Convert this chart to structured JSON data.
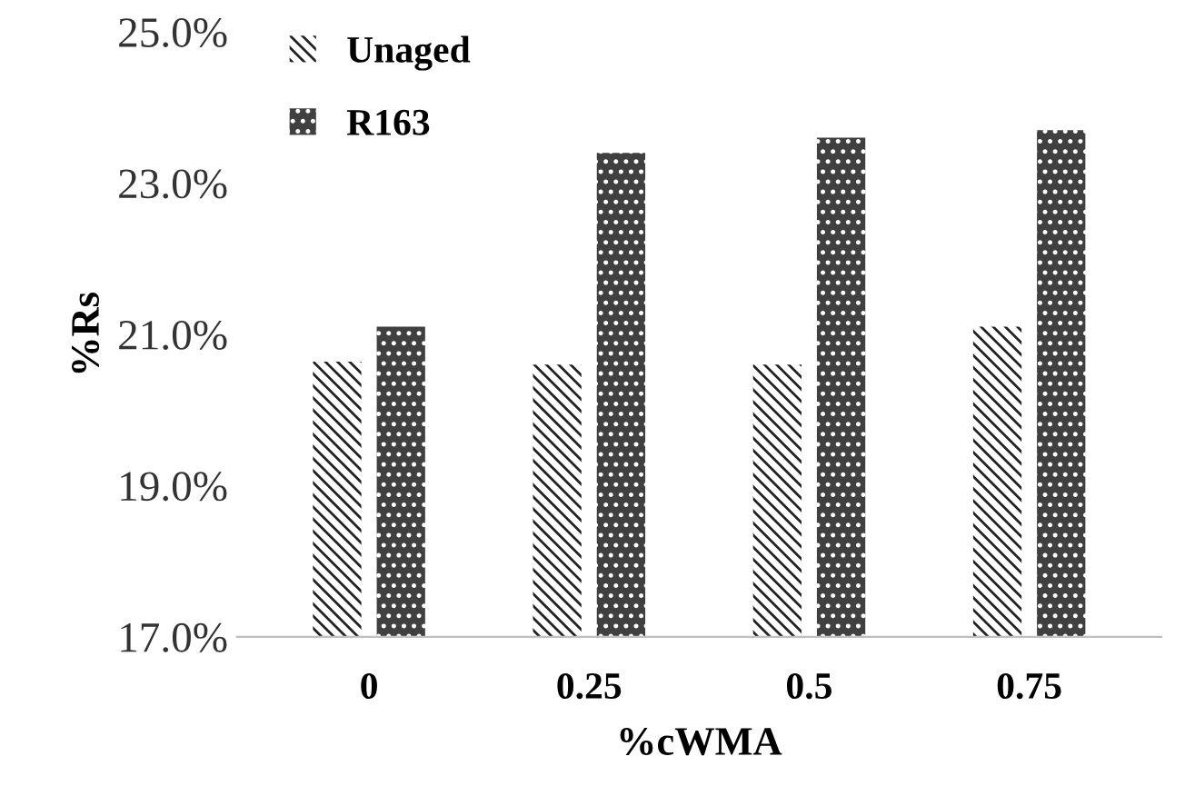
{
  "chart_data": {
    "type": "bar",
    "xlabel": "%cWMA",
    "ylabel": "%Rs",
    "categories": [
      "0",
      "0.25",
      "0.5",
      "0.75"
    ],
    "series": [
      {
        "name": "Unaged",
        "color": "#ffffff",
        "values": [
          20.64,
          20.6,
          20.6,
          21.1
        ]
      },
      {
        "name": "R163",
        "color": "#404040",
        "values": [
          21.1,
          23.4,
          23.6,
          23.7
        ]
      }
    ],
    "ylim": [
      17,
      25
    ],
    "yticks": [
      {
        "value": 17,
        "label": "17.0%"
      },
      {
        "value": 19,
        "label": "19.0%"
      },
      {
        "value": 21,
        "label": "21.0%"
      },
      {
        "value": 23,
        "label": "23.0%"
      },
      {
        "value": 25,
        "label": "25.0%"
      }
    ],
    "grid": false,
    "legend": "top left"
  }
}
